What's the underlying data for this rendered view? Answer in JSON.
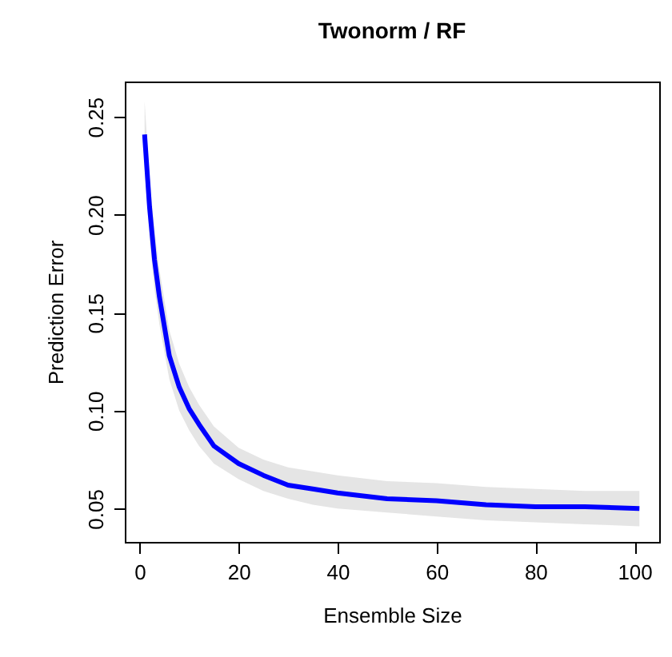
{
  "chart_data": {
    "type": "line",
    "title": "Twonorm / RF",
    "xlabel": "Ensemble Size",
    "ylabel": "Prediction Error",
    "x": [
      1,
      2,
      3,
      4,
      6,
      8,
      10,
      12,
      15,
      20,
      25,
      30,
      35,
      40,
      50,
      60,
      70,
      80,
      90,
      101
    ],
    "series": [
      {
        "color": "#0000ff",
        "values": [
          0.241,
          0.204,
          0.177,
          0.158,
          0.128,
          0.112,
          0.101,
          0.093,
          0.082,
          0.073,
          0.067,
          0.062,
          0.06,
          0.058,
          0.055,
          0.054,
          0.052,
          0.051,
          0.051,
          0.05
        ],
        "lower": [
          0.224,
          0.188,
          0.162,
          0.144,
          0.116,
          0.1,
          0.09,
          0.082,
          0.073,
          0.065,
          0.059,
          0.055,
          0.052,
          0.05,
          0.048,
          0.046,
          0.044,
          0.043,
          0.042,
          0.041
        ],
        "upper": [
          0.258,
          0.219,
          0.192,
          0.172,
          0.141,
          0.124,
          0.112,
          0.103,
          0.092,
          0.081,
          0.075,
          0.071,
          0.069,
          0.067,
          0.064,
          0.063,
          0.061,
          0.06,
          0.059,
          0.059
        ]
      }
    ],
    "xlim": [
      -3,
      105
    ],
    "ylim": [
      0.033,
      0.268
    ],
    "xticks": [
      0,
      20,
      40,
      60,
      80,
      100
    ],
    "yticks": [
      {
        "value": 0.05,
        "label": "0.05"
      },
      {
        "value": 0.1,
        "label": "0.10"
      },
      {
        "value": 0.15,
        "label": "0.15"
      },
      {
        "value": 0.2,
        "label": "0.20"
      },
      {
        "value": 0.25,
        "label": "0.25"
      }
    ],
    "marker": "none",
    "line_style": "solid"
  }
}
